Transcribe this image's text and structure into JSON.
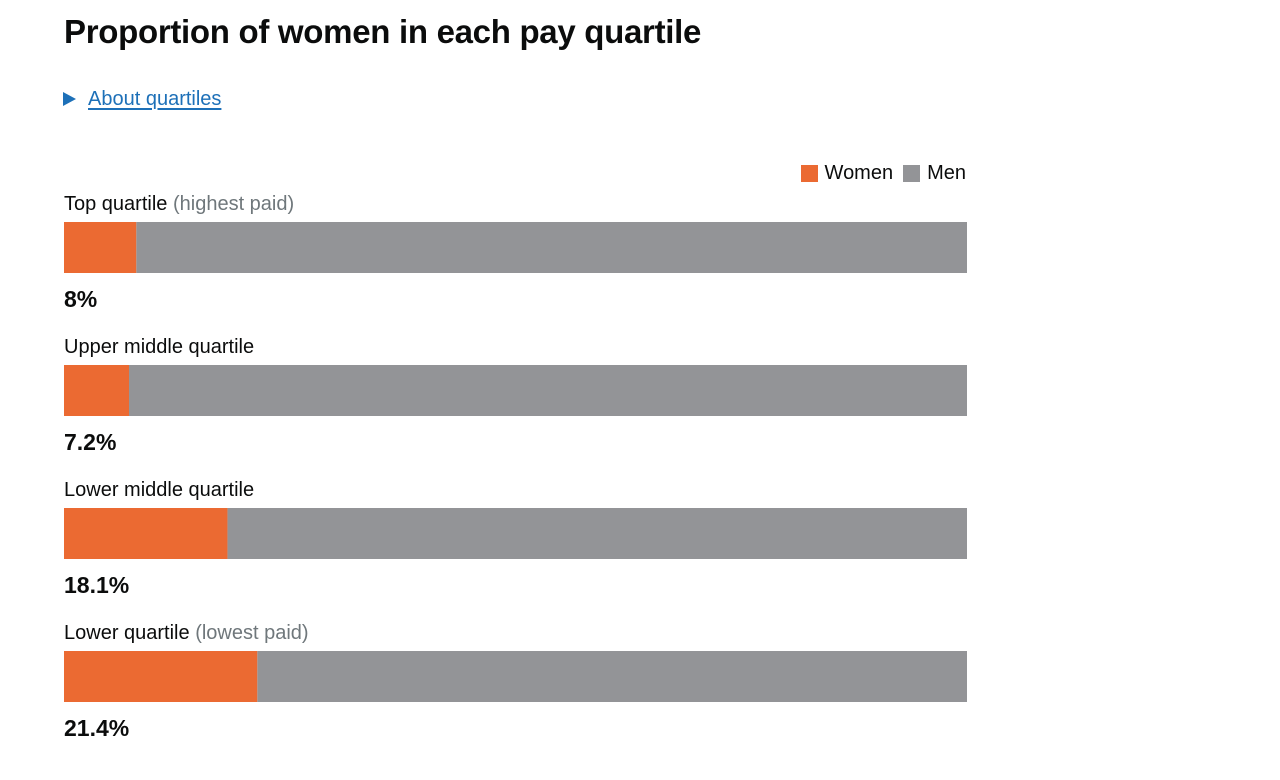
{
  "title": "Proportion of women in each pay quartile",
  "details_link": "About quartiles",
  "colors": {
    "women": "#eb6a32",
    "men": "#939497",
    "link": "#1d70b8"
  },
  "legend": {
    "women": "Women",
    "men": "Men"
  },
  "chart_data": {
    "type": "bar",
    "orientation": "horizontal",
    "stacked": true,
    "title": "Proportion of women in each pay quartile",
    "xlim": [
      0,
      100
    ],
    "categories": [
      "Top quartile (highest paid)",
      "Upper middle quartile",
      "Lower middle quartile",
      "Lower quartile (lowest paid)"
    ],
    "series": [
      {
        "name": "Women",
        "values": [
          8,
          7.2,
          18.1,
          21.4
        ]
      },
      {
        "name": "Men",
        "values": [
          92,
          92.8,
          81.9,
          78.6
        ]
      }
    ],
    "legend_position": "top-right"
  },
  "quartiles": [
    {
      "label": "Top quartile",
      "note": "(highest paid)",
      "women_pct": 8,
      "value_label": "8%"
    },
    {
      "label": "Upper middle quartile",
      "note": "",
      "women_pct": 7.2,
      "value_label": "7.2%"
    },
    {
      "label": "Lower middle quartile",
      "note": "",
      "women_pct": 18.1,
      "value_label": "18.1%"
    },
    {
      "label": "Lower quartile",
      "note": "(lowest paid)",
      "women_pct": 21.4,
      "value_label": "21.4%"
    }
  ]
}
